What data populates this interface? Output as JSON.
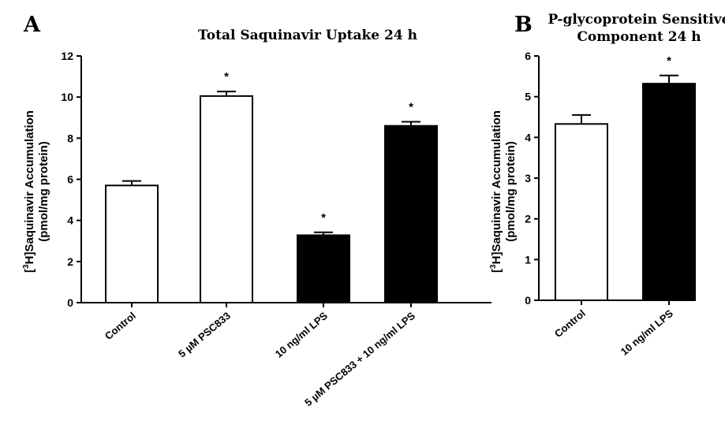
{
  "chart_data": [
    {
      "panel": "A",
      "type": "bar",
      "title": "Total Saquinavir Uptake 24 h",
      "ylabel_prefix": "[",
      "ylabel_sup": "3",
      "ylabel_main": "H]Saquinavir Accumulation",
      "ylabel_line2": "(pmol/mg protein)",
      "categories": [
        "Control",
        "5 µM PSC833",
        "10 ng/ml LPS",
        "5 µM PSC833 + 10 ng/ml LPS"
      ],
      "values": [
        5.7,
        10.05,
        3.28,
        8.6
      ],
      "errors": [
        0.22,
        0.22,
        0.14,
        0.2
      ],
      "fills": [
        "#ffffff",
        "#ffffff",
        "#000000",
        "#000000"
      ],
      "significant": [
        false,
        true,
        true,
        true
      ],
      "ylim": [
        0,
        12
      ],
      "yticks": [
        0,
        2,
        4,
        6,
        8,
        10,
        12
      ],
      "grid": false
    },
    {
      "panel": "B",
      "type": "bar",
      "title_line1": "P-glycoprotein Sensitive",
      "title_line2": "Component 24 h",
      "ylabel_prefix": "[",
      "ylabel_sup": "3",
      "ylabel_main": "H]Saquinavir Accumulation",
      "ylabel_line2": "(pmol/mg protein)",
      "categories": [
        "Control",
        "10 ng/ml LPS"
      ],
      "values": [
        4.33,
        5.32
      ],
      "errors": [
        0.22,
        0.2
      ],
      "fills": [
        "#ffffff",
        "#000000"
      ],
      "significant": [
        false,
        true
      ],
      "ylim": [
        0,
        6
      ],
      "yticks": [
        0,
        1,
        2,
        3,
        4,
        5,
        6
      ],
      "grid": false
    }
  ],
  "significance_marker": "*"
}
